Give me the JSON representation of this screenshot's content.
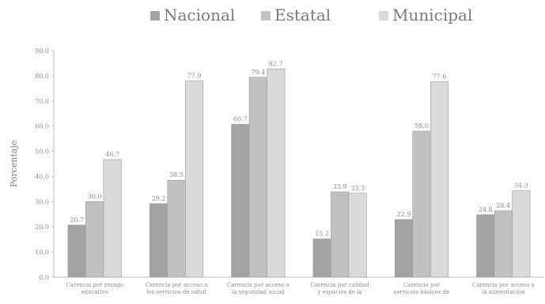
{
  "chart_data": {
    "type": "bar",
    "ylabel": "Porcentaje",
    "ylim": [
      0,
      90
    ],
    "yticks": [
      "0.0",
      "10.0",
      "20.0",
      "30.0",
      "40.0",
      "50.0",
      "60.0",
      "70.0",
      "80.0",
      "90.0"
    ],
    "categories": [
      [
        "Carencia por rezago",
        "educativo"
      ],
      [
        "Carencia por acceso a",
        "los servicios de salud"
      ],
      [
        "Carencia por acceso a",
        "la seguridad social"
      ],
      [
        "Carencia por calidad",
        "y espacios de la"
      ],
      [
        "Carencia por",
        "servicios básicos de"
      ],
      [
        "Carencia por acceso a",
        "la alimentación"
      ]
    ],
    "series": [
      {
        "name": "Nacional",
        "color": "#a3a3a3",
        "values": [
          20.7,
          29.2,
          60.7,
          15.2,
          22.9,
          24.8
        ]
      },
      {
        "name": "Estatal",
        "color": "#c1c1c1",
        "values": [
          30.0,
          38.5,
          79.4,
          33.9,
          58.0,
          26.4
        ]
      },
      {
        "name": "Municipal",
        "color": "#dadada",
        "values": [
          46.7,
          77.9,
          82.7,
          33.3,
          77.6,
          34.3
        ]
      }
    ],
    "legend_position": "top",
    "grid": false
  }
}
